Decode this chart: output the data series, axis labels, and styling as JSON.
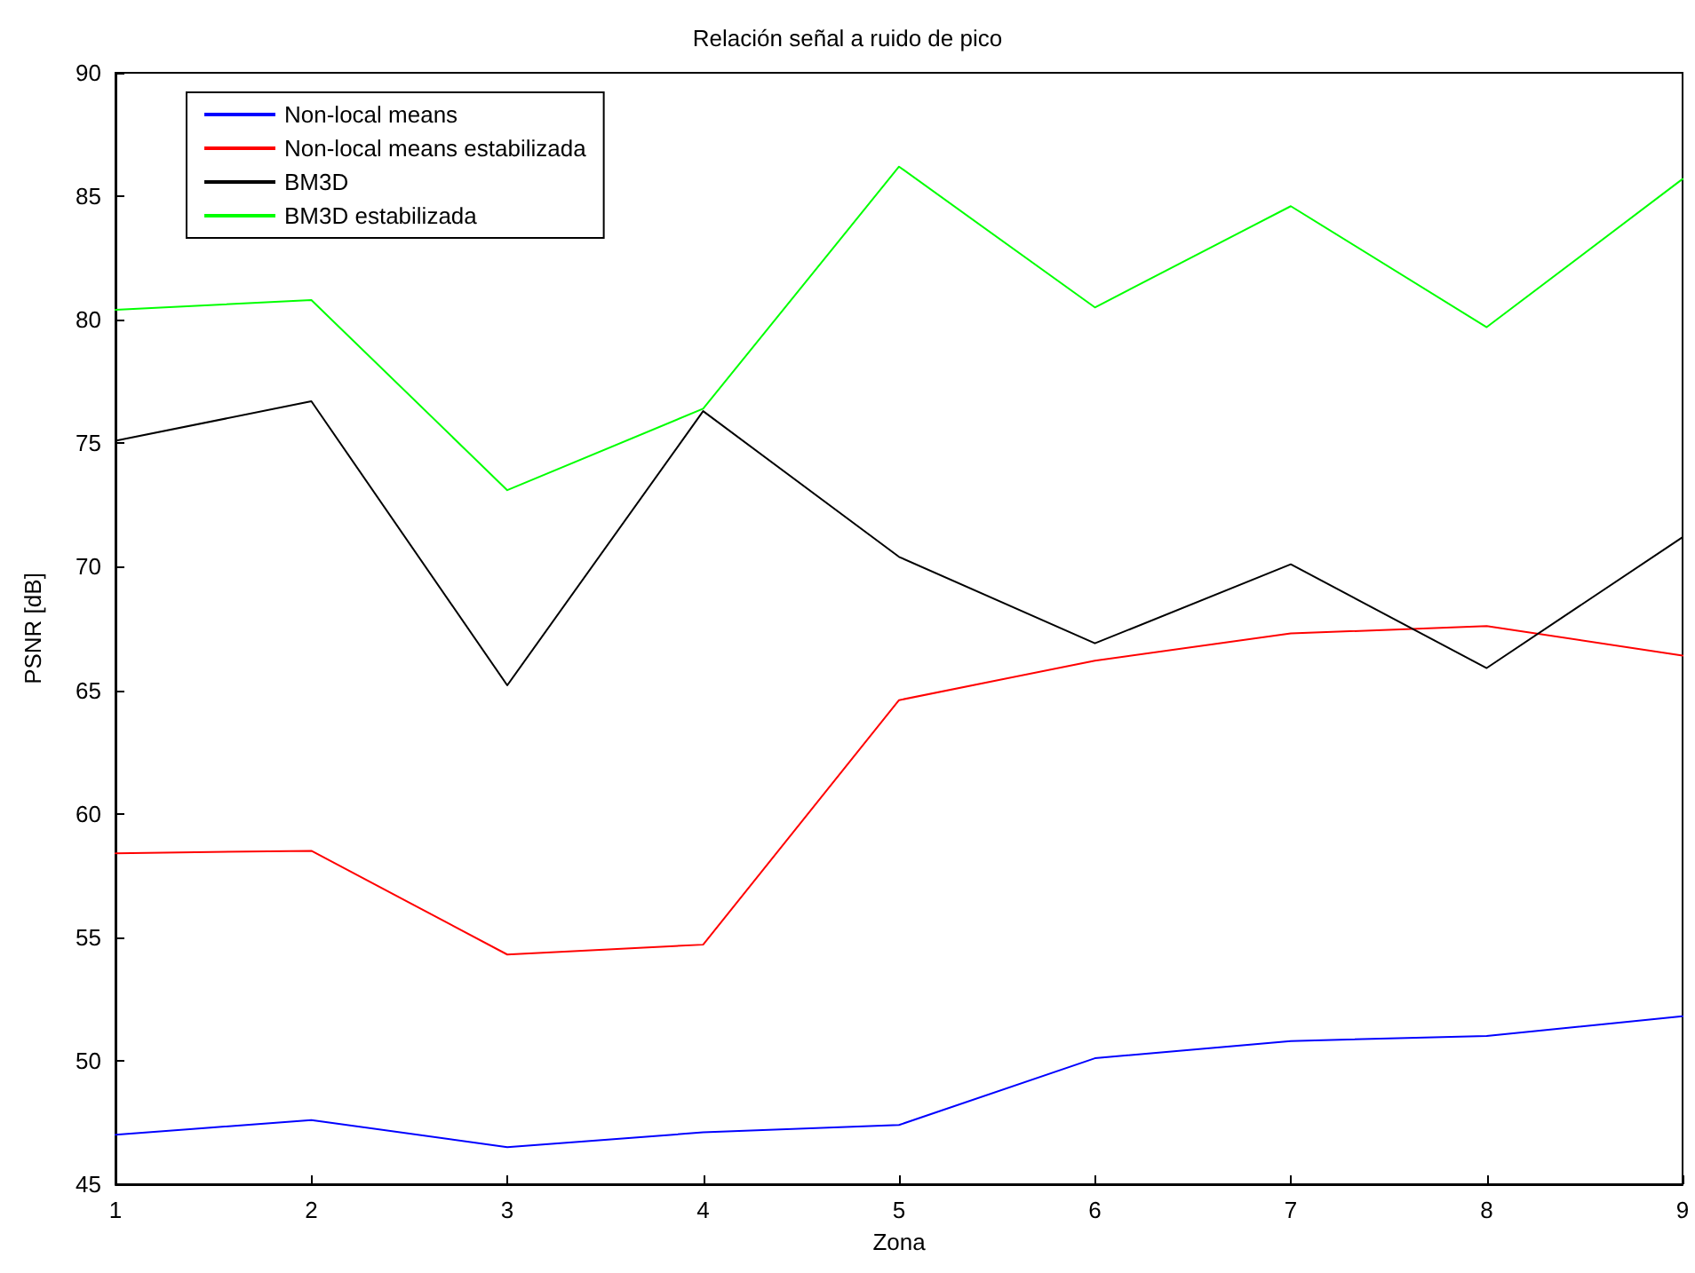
{
  "chart_data": {
    "type": "line",
    "title": "Relación señal a ruido de pico",
    "xlabel": "Zona",
    "ylabel": "PSNR [dB]",
    "x": [
      1,
      2,
      3,
      4,
      5,
      6,
      7,
      8,
      9
    ],
    "xlim": [
      1,
      9
    ],
    "xticks": [
      1,
      2,
      3,
      4,
      5,
      6,
      7,
      8,
      9
    ],
    "ylim": [
      45,
      90
    ],
    "yticks": [
      45,
      50,
      55,
      60,
      65,
      70,
      75,
      80,
      85,
      90
    ],
    "grid": false,
    "legend": "top left",
    "marker": "none",
    "line_style": "solid",
    "series": [
      {
        "name": "Non-local means",
        "color": "#0000ff",
        "values": [
          47.0,
          47.6,
          46.5,
          47.1,
          47.4,
          50.1,
          50.8,
          51.0,
          51.8
        ]
      },
      {
        "name": "Non-local means estabilizada",
        "color": "#ff0000",
        "values": [
          58.4,
          58.5,
          54.3,
          54.7,
          64.6,
          66.2,
          67.3,
          67.6,
          66.4
        ]
      },
      {
        "name": "BM3D",
        "color": "#000000",
        "values": [
          75.1,
          76.7,
          65.2,
          76.3,
          70.4,
          66.9,
          70.1,
          65.9,
          71.2
        ]
      },
      {
        "name": "BM3D estabilizada",
        "color": "#00ff00",
        "values": [
          80.4,
          80.8,
          73.1,
          76.4,
          86.2,
          80.5,
          84.6,
          79.7,
          85.7
        ]
      }
    ]
  }
}
